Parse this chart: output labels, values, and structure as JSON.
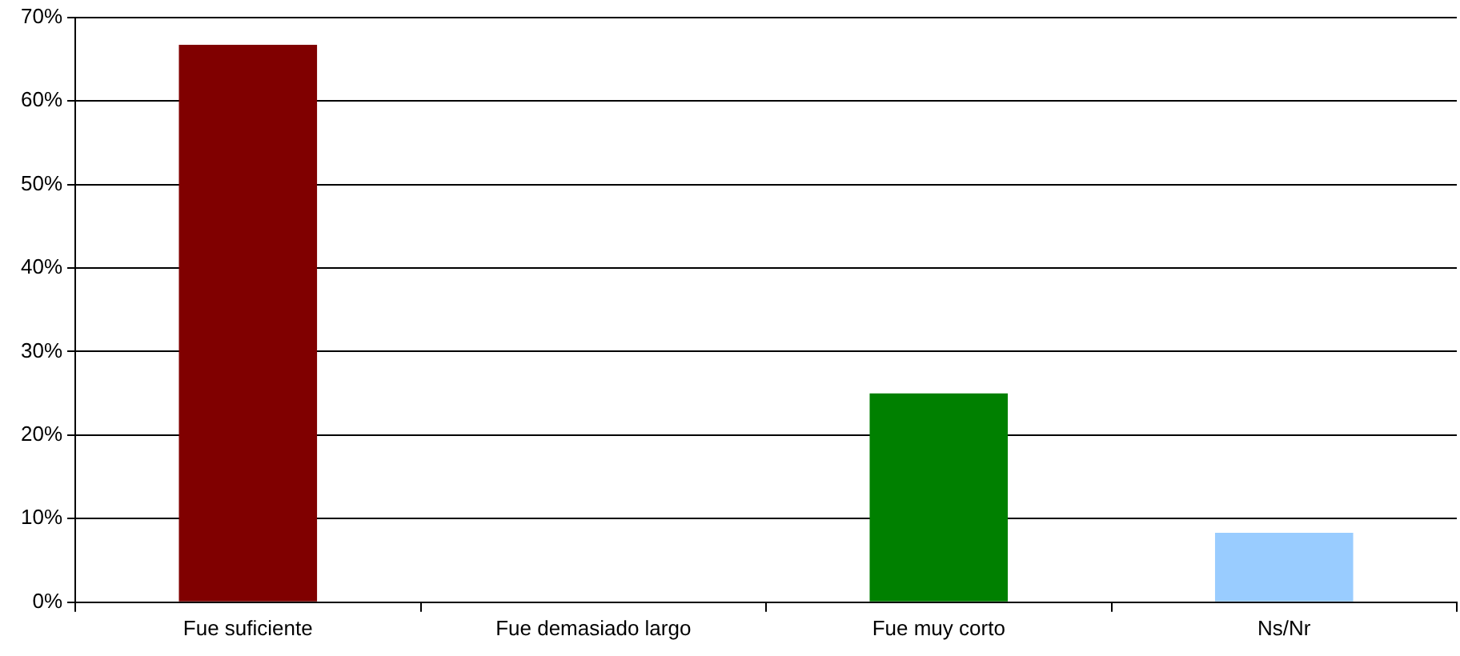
{
  "chart_data": {
    "type": "bar",
    "categories": [
      "Fue suficiente",
      "Fue demasiado largo",
      "Fue muy corto",
      "Ns/Nr"
    ],
    "values": [
      66.7,
      0,
      25,
      8.3
    ],
    "colors": [
      "#800000",
      "#800000",
      "#008000",
      "#99ccff"
    ],
    "ylim": [
      0,
      70
    ],
    "yticks": [
      {
        "value": 0,
        "label": "0%"
      },
      {
        "value": 10,
        "label": "10%"
      },
      {
        "value": 20,
        "label": "20%"
      },
      {
        "value": 30,
        "label": "30%"
      },
      {
        "value": 40,
        "label": "40%"
      },
      {
        "value": 50,
        "label": "50%"
      },
      {
        "value": 60,
        "label": "60%"
      },
      {
        "value": 70,
        "label": "70%"
      }
    ],
    "grid": "y",
    "legend": false
  }
}
